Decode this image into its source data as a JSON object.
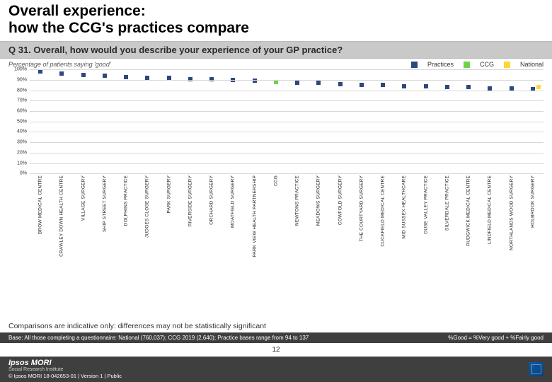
{
  "title": {
    "line1": "Overall experience:",
    "line2": "how the CCG's practices compare"
  },
  "question": "Q 31. Overall, how would you describe your experience of your GP practice?",
  "subheading": "Percentage of patients saying 'good'",
  "legend": {
    "practices": {
      "label": "Practices",
      "color": "#2d487c"
    },
    "ccg": {
      "label": "CCG",
      "color": "#6fd24a"
    },
    "national": {
      "label": "National",
      "color": "#ffd633"
    }
  },
  "chart": {
    "type": "scatter",
    "ylim": [
      0,
      100
    ],
    "ytick_step": 10,
    "ytick_suffix": "%",
    "grid_color": "#d8d8d8",
    "background_color": "#ffffff",
    "axis_color": "#888888",
    "label_fontsize": 7,
    "category_fontsize": 6.5,
    "marker": {
      "shape": "square",
      "size": 6
    },
    "ccg_value": 88,
    "national_value": 83,
    "categories": [
      {
        "label": "BROW MEDICAL CENTRE",
        "value": 98
      },
      {
        "label": "CRAWLEY DOWN HEALTH CENTRE",
        "value": 96
      },
      {
        "label": "VILLAGE SURGERY",
        "value": 95
      },
      {
        "label": "SHIP STREET SURGERY",
        "value": 94
      },
      {
        "label": "DOLPHINS PRACTICE",
        "value": 93
      },
      {
        "label": "JUDGES CLOSE SURGERY",
        "value": 92
      },
      {
        "label": "PARK SURGERY",
        "value": 92
      },
      {
        "label": "RIVERSIDE SURGERY",
        "value": 91
      },
      {
        "label": "ORCHARD SURGERY",
        "value": 91
      },
      {
        "label": "MOATFIELD SURGERY",
        "value": 90
      },
      {
        "label": "PARK VIEW HEALTH PARTNERSHIP",
        "value": 89
      },
      {
        "label": "CCG",
        "value": 88,
        "is_ccg": true
      },
      {
        "label": "NEWTONS PRACTICE",
        "value": 87
      },
      {
        "label": "MEADOWS SURGERY",
        "value": 87
      },
      {
        "label": "COWFOLD SURGERY",
        "value": 86
      },
      {
        "label": "THE COURTYARD SURGERY",
        "value": 85
      },
      {
        "label": "CUCKFIELD MEDICAL CENTRE",
        "value": 85
      },
      {
        "label": "MID SUSSEX HEALTHCARE",
        "value": 84
      },
      {
        "label": "OUSE VALLEY PRACTICE",
        "value": 84
      },
      {
        "label": "SILVERDALE PRACTICE",
        "value": 83
      },
      {
        "label": "RUDGWICK MEDICAL CENTRE",
        "value": 83
      },
      {
        "label": "LINDFIELD MEDICAL CENTRE",
        "value": 82
      },
      {
        "label": "NORTHLANDS WOOD SURGERY",
        "value": 82
      },
      {
        "label": "HOLBROOK SURGERY",
        "value": 81
      }
    ]
  },
  "comparisons_note": "Comparisons are indicative only: differences may not be statistically significant",
  "base_note": "Base: All those completing a questionnaire: National (760,037); CCG 2019 (2,640); Practice bases range from 94 to 137",
  "good_def": "%Good = %Very good + %Fairly good",
  "page_number": "12",
  "footer": {
    "brand_top": "Ipsos MORI",
    "brand_sub": "Social Research Institute",
    "copyright": "© Ipsos MORI    18-042653-01 | Version 1 | Public"
  }
}
